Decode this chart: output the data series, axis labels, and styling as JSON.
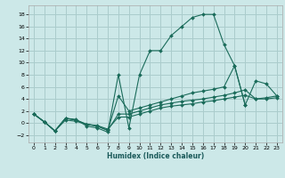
{
  "xlabel": "Humidex (Indice chaleur)",
  "bg_color": "#cce8e8",
  "grid_color": "#aacccc",
  "line_color": "#1a6b5a",
  "xlim": [
    -0.5,
    23.5
  ],
  "ylim": [
    -3.2,
    19.5
  ],
  "xticks": [
    0,
    1,
    2,
    3,
    4,
    5,
    6,
    7,
    8,
    9,
    10,
    11,
    12,
    13,
    14,
    15,
    16,
    17,
    18,
    19,
    20,
    21,
    22,
    23
  ],
  "yticks": [
    -2,
    0,
    2,
    4,
    6,
    8,
    10,
    12,
    14,
    16,
    18
  ],
  "line1_x": [
    0,
    1,
    2,
    3,
    4,
    5,
    6,
    7,
    8,
    9,
    10,
    11,
    12,
    13,
    14,
    15,
    16,
    17,
    18,
    19,
    20,
    21,
    22,
    23
  ],
  "line1_y": [
    1.5,
    0.2,
    -1.3,
    0.8,
    0.6,
    -0.5,
    -0.8,
    -1.5,
    8.0,
    -0.8,
    8.0,
    12.0,
    12.0,
    14.5,
    16.0,
    17.5,
    18.0,
    18.0,
    13.0,
    9.5,
    3.0,
    null,
    null,
    null
  ],
  "line2_x": [
    0,
    1,
    2,
    3,
    4,
    5,
    6,
    7,
    8,
    9,
    10,
    11,
    12,
    13,
    14,
    15,
    16,
    17,
    18,
    19,
    20,
    21,
    22,
    23
  ],
  "line2_y": [
    1.5,
    0.2,
    -1.3,
    0.8,
    0.5,
    -0.2,
    -0.5,
    -1.2,
    4.5,
    2.0,
    2.5,
    3.0,
    3.5,
    4.0,
    4.5,
    5.0,
    5.3,
    5.6,
    6.0,
    9.5,
    3.0,
    7.0,
    6.5,
    4.5
  ],
  "line3_x": [
    0,
    1,
    2,
    3,
    4,
    5,
    6,
    7,
    8,
    9,
    10,
    11,
    12,
    13,
    14,
    15,
    16,
    17,
    18,
    19,
    20,
    21,
    22,
    23
  ],
  "line3_y": [
    1.5,
    0.2,
    -1.3,
    0.8,
    0.5,
    -0.2,
    -0.5,
    -1.2,
    1.5,
    1.5,
    2.0,
    2.5,
    3.0,
    3.3,
    3.6,
    3.8,
    4.0,
    4.3,
    4.6,
    5.0,
    5.5,
    4.0,
    4.2,
    4.5
  ],
  "line4_x": [
    0,
    1,
    2,
    3,
    4,
    5,
    6,
    7,
    8,
    9,
    10,
    11,
    12,
    13,
    14,
    15,
    16,
    17,
    18,
    19,
    20,
    21,
    22,
    23
  ],
  "line4_y": [
    1.5,
    0.2,
    -1.3,
    0.5,
    0.3,
    -0.2,
    -0.4,
    -1.0,
    1.0,
    1.0,
    1.5,
    2.0,
    2.5,
    2.8,
    3.0,
    3.2,
    3.5,
    3.7,
    4.0,
    4.3,
    4.6,
    4.0,
    4.0,
    4.2
  ]
}
